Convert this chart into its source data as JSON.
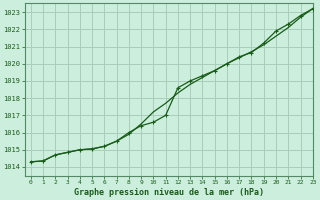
{
  "title": "Graphe pression niveau de la mer (hPa)",
  "bg_color": "#cceedd",
  "grid_color": "#aaccbb",
  "line_color": "#1a5c1a",
  "marker_color": "#1a5c1a",
  "xlim": [
    -0.5,
    23
  ],
  "ylim": [
    1013.5,
    1023.5
  ],
  "yticks": [
    1014,
    1015,
    1016,
    1017,
    1018,
    1019,
    1020,
    1021,
    1022,
    1023
  ],
  "xticks": [
    0,
    1,
    2,
    3,
    4,
    5,
    6,
    7,
    8,
    9,
    10,
    11,
    12,
    13,
    14,
    15,
    16,
    17,
    18,
    19,
    20,
    21,
    22,
    23
  ],
  "hours": [
    0,
    1,
    2,
    3,
    4,
    5,
    6,
    7,
    8,
    9,
    10,
    11,
    12,
    13,
    14,
    15,
    16,
    17,
    18,
    19,
    20,
    21,
    22,
    23
  ],
  "pressure_line1": [
    1014.3,
    1014.35,
    1014.7,
    1014.85,
    1015.0,
    1015.05,
    1015.2,
    1015.5,
    1015.9,
    1016.5,
    1017.2,
    1017.7,
    1018.3,
    1018.8,
    1019.2,
    1019.6,
    1020.0,
    1020.35,
    1020.7,
    1021.1,
    1021.6,
    1022.1,
    1022.7,
    1023.2
  ],
  "pressure_line2": [
    1014.3,
    1014.35,
    1014.7,
    1014.85,
    1015.0,
    1015.05,
    1015.2,
    1015.5,
    1016.0,
    1016.4,
    1016.6,
    1017.0,
    1018.6,
    1019.0,
    1019.3,
    1019.6,
    1020.0,
    1020.4,
    1020.65,
    1021.2,
    1021.9,
    1022.3,
    1022.8,
    1023.2
  ],
  "pressure_markers": [
    1014.3,
    1014.35,
    1014.7,
    1014.85,
    1015.0,
    1015.05,
    1015.2,
    1015.5,
    1015.9,
    1016.5,
    1017.2,
    1017.7,
    1018.3,
    1018.8,
    1019.2,
    1019.6,
    1020.0,
    1020.35,
    1020.7,
    1021.1,
    1021.6,
    1022.1,
    1022.7,
    1023.2
  ]
}
